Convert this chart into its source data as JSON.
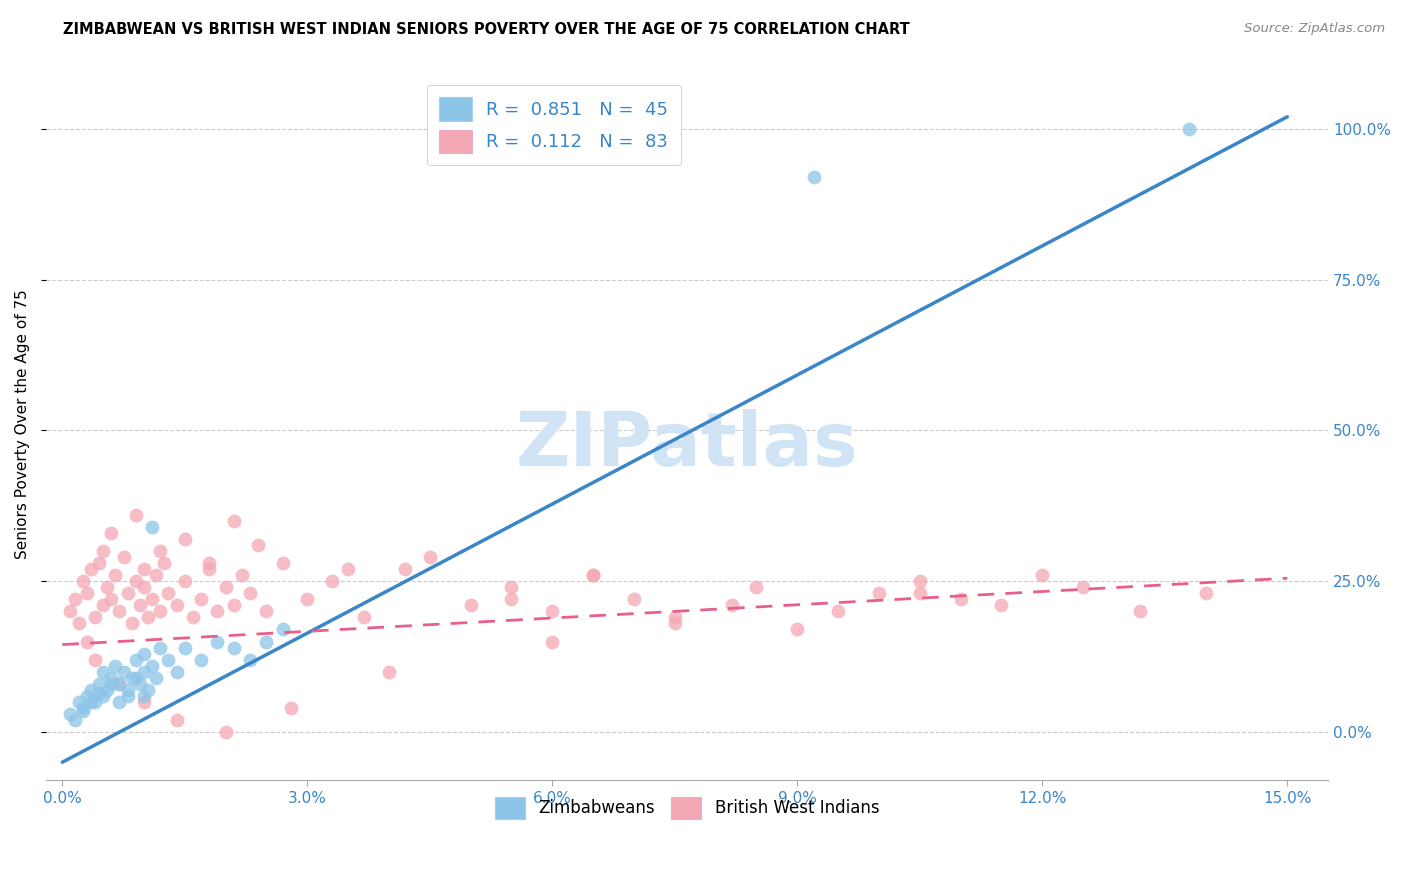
{
  "title": "ZIMBABWEAN VS BRITISH WEST INDIAN SENIORS POVERTY OVER THE AGE OF 75 CORRELATION CHART",
  "source": "Source: ZipAtlas.com",
  "ylabel": "Seniors Poverty Over the Age of 75",
  "xlabel_vals": [
    0.0,
    3.0,
    6.0,
    9.0,
    12.0,
    15.0
  ],
  "ylabel_vals": [
    0.0,
    25.0,
    50.0,
    75.0,
    100.0
  ],
  "xlim": [
    -0.2,
    15.5
  ],
  "ylim": [
    -8.0,
    110.0
  ],
  "legend1_label": "R =  0.851   N =  45",
  "legend2_label": "R =  0.112   N =  83",
  "legend_bottom_label1": "Zimbabweans",
  "legend_bottom_label2": "British West Indians",
  "blue_scatter": "#8cc5e8",
  "blue_line": "#3a86c8",
  "pink_scatter": "#f4a7b5",
  "pink_line": "#e8608a",
  "watermark_color": "#d0e4f5",
  "zim_line_x": [
    0.0,
    15.0
  ],
  "zim_line_y": [
    -5.0,
    102.0
  ],
  "bwi_line_x": [
    0.0,
    15.0
  ],
  "bwi_line_y": [
    14.5,
    25.5
  ],
  "zimbabwe_scatter_x": [
    0.1,
    0.2,
    0.25,
    0.3,
    0.35,
    0.4,
    0.45,
    0.5,
    0.5,
    0.55,
    0.6,
    0.65,
    0.7,
    0.75,
    0.8,
    0.85,
    0.9,
    0.95,
    1.0,
    1.0,
    1.05,
    1.1,
    1.15,
    1.2,
    1.3,
    1.4,
    1.5,
    1.7,
    1.9,
    2.1,
    2.3,
    2.5,
    2.7,
    0.15,
    0.25,
    0.35,
    0.45,
    0.6,
    0.7,
    0.8,
    0.9,
    1.0,
    1.1,
    9.2,
    13.8
  ],
  "zimbabwe_scatter_y": [
    3.0,
    5.0,
    4.0,
    6.0,
    7.0,
    5.0,
    8.0,
    6.0,
    10.0,
    7.0,
    9.0,
    11.0,
    8.0,
    10.0,
    6.0,
    9.0,
    12.0,
    8.0,
    10.0,
    13.0,
    7.0,
    11.0,
    9.0,
    14.0,
    12.0,
    10.0,
    14.0,
    12.0,
    15.0,
    14.0,
    12.0,
    15.0,
    17.0,
    2.0,
    3.5,
    5.0,
    6.5,
    8.0,
    5.0,
    7.0,
    9.0,
    6.0,
    34.0,
    92.0,
    100.0
  ],
  "bwi_scatter_x": [
    0.1,
    0.15,
    0.2,
    0.25,
    0.3,
    0.35,
    0.4,
    0.45,
    0.5,
    0.5,
    0.55,
    0.6,
    0.65,
    0.7,
    0.75,
    0.8,
    0.85,
    0.9,
    0.95,
    1.0,
    1.0,
    1.05,
    1.1,
    1.15,
    1.2,
    1.25,
    1.3,
    1.4,
    1.5,
    1.6,
    1.7,
    1.8,
    1.9,
    2.0,
    2.1,
    2.2,
    2.3,
    2.5,
    2.7,
    3.0,
    3.3,
    3.7,
    4.2,
    5.0,
    5.5,
    6.0,
    6.5,
    7.0,
    7.5,
    8.2,
    9.0,
    9.5,
    10.0,
    10.5,
    11.0,
    12.0,
    12.5,
    13.2,
    14.0,
    0.3,
    0.6,
    0.9,
    1.2,
    1.5,
    1.8,
    2.1,
    2.4,
    3.5,
    4.5,
    5.5,
    6.5,
    7.5,
    8.5,
    10.5,
    11.5,
    0.4,
    0.7,
    1.0,
    1.4,
    2.0,
    2.8,
    4.0,
    6.0
  ],
  "bwi_scatter_y": [
    20.0,
    22.0,
    18.0,
    25.0,
    23.0,
    27.0,
    19.0,
    28.0,
    21.0,
    30.0,
    24.0,
    22.0,
    26.0,
    20.0,
    29.0,
    23.0,
    18.0,
    25.0,
    21.0,
    24.0,
    27.0,
    19.0,
    22.0,
    26.0,
    20.0,
    28.0,
    23.0,
    21.0,
    25.0,
    19.0,
    22.0,
    27.0,
    20.0,
    24.0,
    21.0,
    26.0,
    23.0,
    20.0,
    28.0,
    22.0,
    25.0,
    19.0,
    27.0,
    21.0,
    24.0,
    20.0,
    26.0,
    22.0,
    18.0,
    21.0,
    17.0,
    20.0,
    23.0,
    25.0,
    22.0,
    26.0,
    24.0,
    20.0,
    23.0,
    15.0,
    33.0,
    36.0,
    30.0,
    32.0,
    28.0,
    35.0,
    31.0,
    27.0,
    29.0,
    22.0,
    26.0,
    19.0,
    24.0,
    23.0,
    21.0,
    12.0,
    8.0,
    5.0,
    2.0,
    0.0,
    4.0,
    10.0,
    15.0
  ]
}
